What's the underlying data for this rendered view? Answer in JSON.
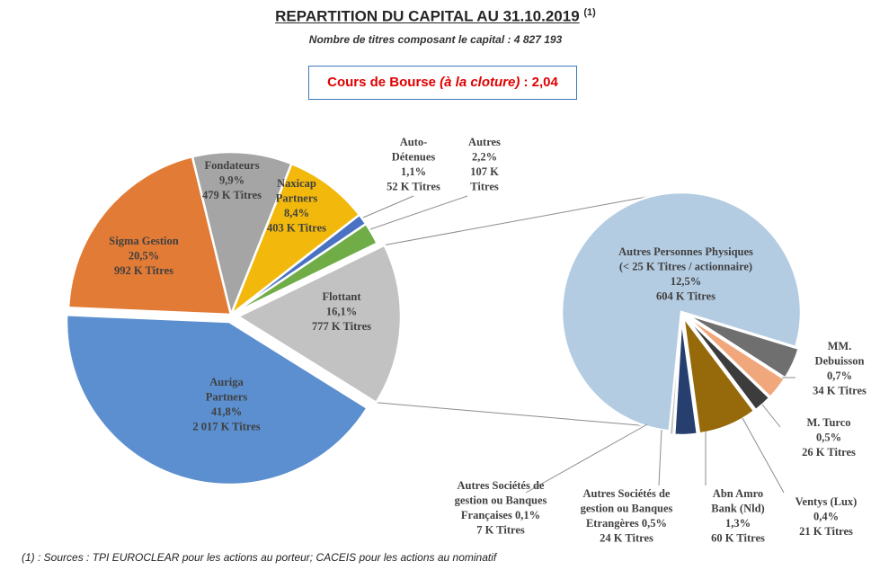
{
  "header": {
    "title": "REPARTITION DU CAPITAL AU 31.10.2019",
    "title_note": "(1)",
    "subtitle": "Nombre de titres composant le capital : 4 827 193"
  },
  "price": {
    "label": "Cours de Bourse",
    "qualifier": "(à la cloture)",
    "separator": " : ",
    "value": "2,04"
  },
  "footnote": "(1) : Sources : TPI EUROCLEAR pour les actions au porteur; CACEIS pour les actions au nominatif",
  "chart_data": [
    {
      "type": "pie",
      "title": "Répartition du capital",
      "slices": [
        {
          "name": "Auriga Partners",
          "lines": [
            "Auriga",
            "Partners",
            "41,8%",
            "2 017 K Titres"
          ],
          "value": 41.8,
          "titres_k": 2017,
          "color": "#5b8fcf"
        },
        {
          "name": "Sigma Gestion",
          "lines": [
            "Sigma Gestion",
            "20,5%",
            "992 K Titres"
          ],
          "value": 20.5,
          "titres_k": 992,
          "color": "#e27b35"
        },
        {
          "name": "Fondateurs",
          "lines": [
            "Fondateurs",
            "9,9%",
            "479 K Titres"
          ],
          "value": 9.9,
          "titres_k": 479,
          "color": "#a5a5a5"
        },
        {
          "name": "Naxicap Partners",
          "lines": [
            "Naxicap",
            "Partners",
            "8,4%",
            "403 K Titres"
          ],
          "value": 8.4,
          "titres_k": 403,
          "color": "#f2b90c"
        },
        {
          "name": "Auto-Détenues",
          "lines": [
            "Auto-",
            "Détenues",
            "1,1%",
            "52 K Titres"
          ],
          "value": 1.1,
          "titres_k": 52,
          "color": "#4a72c4"
        },
        {
          "name": "Autres",
          "lines": [
            "Autres",
            "2,2%",
            "107 K",
            "Titres"
          ],
          "value": 2.2,
          "titres_k": 107,
          "color": "#70ad47"
        },
        {
          "name": "Flottant",
          "lines": [
            "Flottant",
            "16,1%",
            "777 K Titres"
          ],
          "value": 16.1,
          "titres_k": 777,
          "color": "#c2c2c2"
        }
      ]
    },
    {
      "type": "pie",
      "title": "Détail du flottant",
      "slices": [
        {
          "name": "Autres Personnes Physiques",
          "lines": [
            "Autres Personnes Physiques",
            "(< 25 K Titres / actionnaire)",
            "12,5%",
            "604 K Titres"
          ],
          "value": 12.5,
          "titres_k": 604,
          "color": "#b4cce2"
        },
        {
          "name": "MM. Debuisson",
          "lines": [
            "MM.",
            "Debuisson",
            "0,7%",
            "34 K Titres"
          ],
          "value": 0.7,
          "titres_k": 34,
          "color": "#6f6f6f"
        },
        {
          "name": "M. Turco",
          "lines": [
            "M. Turco",
            "0,5%",
            "26 K Titres"
          ],
          "value": 0.5,
          "titres_k": 26,
          "color": "#f0a77c"
        },
        {
          "name": "Ventys (Lux)",
          "lines": [
            "Ventys (Lux)",
            "0,4%",
            "21 K Titres"
          ],
          "value": 0.4,
          "titres_k": 21,
          "color": "#3c3c3c"
        },
        {
          "name": "Abn Amro Bank (Nld)",
          "lines": [
            "Abn Amro",
            "Bank (Nld)",
            "1,3%",
            "60 K Titres"
          ],
          "value": 1.3,
          "titres_k": 60,
          "color": "#96690b"
        },
        {
          "name": "Autres Sociétés de gestion ou Banques Etrangères",
          "lines": [
            "Autres Sociétés de",
            "gestion ou Banques",
            "Etrangères   0,5%",
            "24 K Titres"
          ],
          "value": 0.5,
          "titres_k": 24,
          "color": "#263f6e"
        },
        {
          "name": "Autres Sociétés de gestion ou Banques Françaises",
          "lines": [
            "Autres Sociétés de",
            "gestion ou Banques",
            "Françaises   0,1%",
            "7 K Titres"
          ],
          "value": 0.1,
          "titres_k": 7,
          "color": "#c9c9c9"
        }
      ]
    }
  ]
}
